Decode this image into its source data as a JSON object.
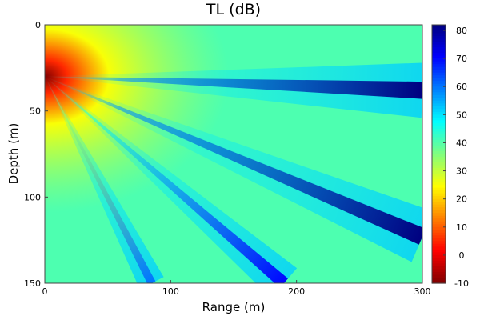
{
  "chart_data": {
    "type": "heatmap",
    "title": "TL (dB)",
    "xlabel": "Range (m)",
    "ylabel": "Depth (m)",
    "xlim": [
      0,
      300
    ],
    "ylim": [
      0,
      150
    ],
    "y_inverted": true,
    "x_ticks": [
      0,
      100,
      200,
      300
    ],
    "y_ticks": [
      0,
      50,
      100,
      150
    ],
    "colorbar": {
      "colormap": "jet",
      "range": [
        -10,
        82
      ],
      "ticks": [
        -10,
        0,
        10,
        20,
        30,
        40,
        50,
        60,
        70,
        80
      ]
    },
    "source": {
      "range_m": 0,
      "depth_m": 30,
      "tl_db": -10
    },
    "background_tl_db": 40,
    "near_field_tl_db": 25,
    "interference_nulls": [
      {
        "range_m": 300,
        "depth_m": 38,
        "tl_db": 82
      },
      {
        "range_m": 300,
        "depth_m": 123,
        "tl_db": 82
      },
      {
        "range_m": 190,
        "depth_m": 150,
        "tl_db": 70
      },
      {
        "range_m": 85,
        "depth_m": 150,
        "tl_db": 60
      }
    ],
    "grid": false,
    "legend": "none"
  }
}
